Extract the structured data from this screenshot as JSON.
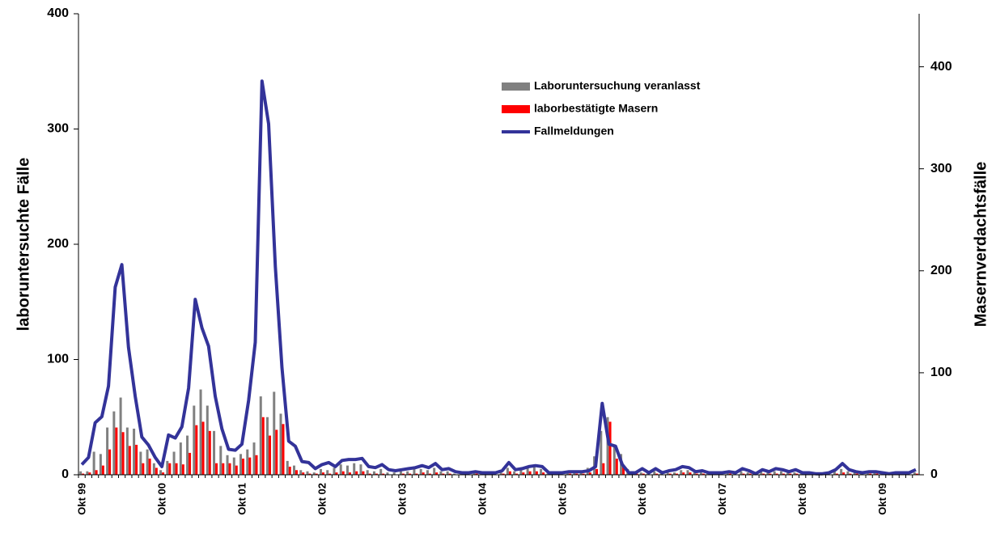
{
  "chart_data": {
    "type": "bar",
    "categories": [
      "Okt 99",
      null,
      null,
      null,
      null,
      null,
      null,
      null,
      null,
      null,
      null,
      null,
      "Okt 00",
      null,
      null,
      null,
      null,
      null,
      null,
      null,
      null,
      null,
      null,
      null,
      "Okt 01",
      null,
      null,
      null,
      null,
      null,
      null,
      null,
      null,
      null,
      null,
      null,
      "Okt 02",
      null,
      null,
      null,
      null,
      null,
      null,
      null,
      null,
      null,
      null,
      null,
      "Okt 03",
      null,
      null,
      null,
      null,
      null,
      null,
      null,
      null,
      null,
      null,
      null,
      "Okt 04",
      null,
      null,
      null,
      null,
      null,
      null,
      null,
      null,
      null,
      null,
      null,
      "Okt 05",
      null,
      null,
      null,
      null,
      null,
      null,
      null,
      null,
      null,
      null,
      null,
      "Okt 06",
      null,
      null,
      null,
      null,
      null,
      null,
      null,
      null,
      null,
      null,
      null,
      "Okt 07",
      null,
      null,
      null,
      null,
      null,
      null,
      null,
      null,
      null,
      null,
      null,
      "Okt 08",
      null,
      null,
      null,
      null,
      null,
      null,
      null,
      null,
      null,
      null,
      null,
      "Okt 09",
      null,
      null,
      null,
      null,
      null
    ],
    "y_label": "laboruntersuchte Fälle",
    "y2_label": "Masernverdachtsfälle",
    "ylim": [
      0,
      400
    ],
    "yticks": [
      0,
      100,
      200,
      300,
      400
    ],
    "y2lim": [
      0,
      452
    ],
    "y2ticks": [
      0,
      100,
      200,
      300,
      400
    ],
    "series": [
      {
        "name": "Laboruntersuchung veranlasst",
        "color": "#808080",
        "type": "bar",
        "values": [
          3,
          3,
          20,
          18,
          41,
          55,
          67,
          41,
          40,
          20,
          22,
          10,
          4,
          12,
          20,
          28,
          34,
          60,
          74,
          60,
          38,
          25,
          17,
          15,
          18,
          22,
          28,
          68,
          50,
          72,
          53,
          12,
          8,
          4,
          3,
          2,
          5,
          4,
          6,
          9,
          8,
          10,
          9,
          4,
          3,
          5,
          2,
          2,
          3,
          3,
          5,
          5,
          4,
          6,
          3,
          3,
          1,
          1,
          1,
          2,
          1,
          1,
          1,
          2,
          6,
          3,
          4,
          6,
          7,
          5,
          1,
          1,
          1,
          2,
          2,
          2,
          6,
          16,
          38,
          50,
          25,
          18,
          5,
          2,
          2,
          1,
          3,
          1,
          2,
          2,
          4,
          4,
          2,
          2,
          1,
          1,
          1,
          2,
          1,
          3,
          2,
          1,
          3,
          2,
          3,
          3,
          2,
          2,
          1,
          1,
          1,
          1,
          1,
          3,
          5,
          3,
          2,
          1,
          2,
          2,
          1,
          1,
          1,
          1,
          1,
          2
        ]
      },
      {
        "name": "laborbestätigte Masern",
        "color": "#ff0000",
        "type": "bar",
        "values": [
          1,
          2,
          4,
          8,
          22,
          41,
          37,
          25,
          26,
          10,
          14,
          6,
          2,
          10,
          10,
          9,
          19,
          43,
          46,
          38,
          10,
          10,
          10,
          8,
          14,
          15,
          17,
          50,
          34,
          39,
          44,
          7,
          4,
          2,
          1,
          1,
          2,
          1,
          2,
          3,
          2,
          3,
          3,
          1,
          1,
          1,
          0,
          0,
          1,
          1,
          1,
          2,
          1,
          2,
          1,
          1,
          0,
          0,
          0,
          1,
          0,
          0,
          0,
          1,
          3,
          1,
          2,
          3,
          3,
          2,
          0,
          0,
          0,
          1,
          1,
          1,
          2,
          5,
          10,
          46,
          14,
          8,
          2,
          1,
          1,
          0,
          1,
          0,
          1,
          1,
          2,
          2,
          1,
          1,
          0,
          0,
          0,
          1,
          0,
          1,
          1,
          0,
          1,
          1,
          1,
          1,
          1,
          1,
          0,
          0,
          0,
          0,
          0,
          1,
          2,
          1,
          1,
          0,
          1,
          1,
          0,
          0,
          0,
          0,
          0,
          1
        ]
      },
      {
        "name": "Fallmeldungen",
        "color": "#333399",
        "type": "line",
        "axis": "y2",
        "values": [
          10,
          17,
          51,
          57,
          87,
          184,
          206,
          125,
          77,
          37,
          29,
          17,
          8,
          39,
          36,
          47,
          85,
          172,
          144,
          126,
          77,
          45,
          25,
          24,
          30,
          73,
          130,
          386,
          344,
          204,
          105,
          33,
          28,
          13,
          12,
          6,
          10,
          12,
          8,
          14,
          15,
          15,
          16,
          8,
          7,
          10,
          5,
          4,
          5,
          6,
          7,
          9,
          7,
          11,
          5,
          6,
          3,
          2,
          2,
          3,
          2,
          2,
          2,
          4,
          12,
          5,
          6,
          8,
          9,
          8,
          2,
          2,
          2,
          3,
          3,
          3,
          4,
          8,
          70,
          30,
          28,
          10,
          2,
          2,
          6,
          2,
          6,
          2,
          4,
          5,
          8,
          7,
          3,
          4,
          2,
          2,
          2,
          3,
          2,
          6,
          4,
          1,
          5,
          3,
          6,
          5,
          3,
          5,
          2,
          2,
          1,
          1,
          2,
          5,
          11,
          5,
          3,
          2,
          3,
          3,
          2,
          1,
          2,
          2,
          2,
          5
        ]
      }
    ]
  }
}
